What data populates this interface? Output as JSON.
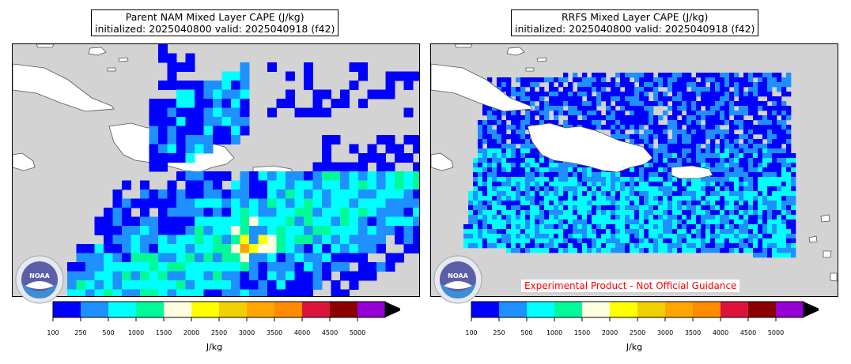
{
  "panels": [
    {
      "title_line1": "Parent NAM Mixed Layer CAPE (J/kg)",
      "title_line2": "initialized: 2025040800 valid: 2025040918 (f42)"
    },
    {
      "title_line1": "RRFS Mixed Layer CAPE (J/kg)",
      "title_line2": "initialized: 2025040800 valid: 2025040918 (f42)"
    }
  ],
  "colorbar": {
    "ticks": [
      "100",
      "250",
      "500",
      "1000",
      "1500",
      "2000",
      "2500",
      "3000",
      "3500",
      "4000",
      "4500",
      "5000"
    ],
    "colors": [
      "#0000ff",
      "#1e90ff",
      "#00ffff",
      "#00fa9a",
      "#ffffe0",
      "#ffff00",
      "#f0d000",
      "#ffa500",
      "#ff8c00",
      "#dc143c",
      "#8b0000",
      "#9400d3"
    ],
    "unit": "J/kg"
  },
  "experimental_note": "Experimental Product - Not Official Guidance",
  "logo": {
    "name": "NOAA",
    "ring_text": "NATIONAL OCEANIC AND ATMOSPHERIC ADMINISTRATION · U.S. DEPARTMENT OF COMMERCE"
  },
  "map_colors": {
    "land": "#ffffff",
    "ocean": "#d3d3d3",
    "coast": "#555555"
  }
}
